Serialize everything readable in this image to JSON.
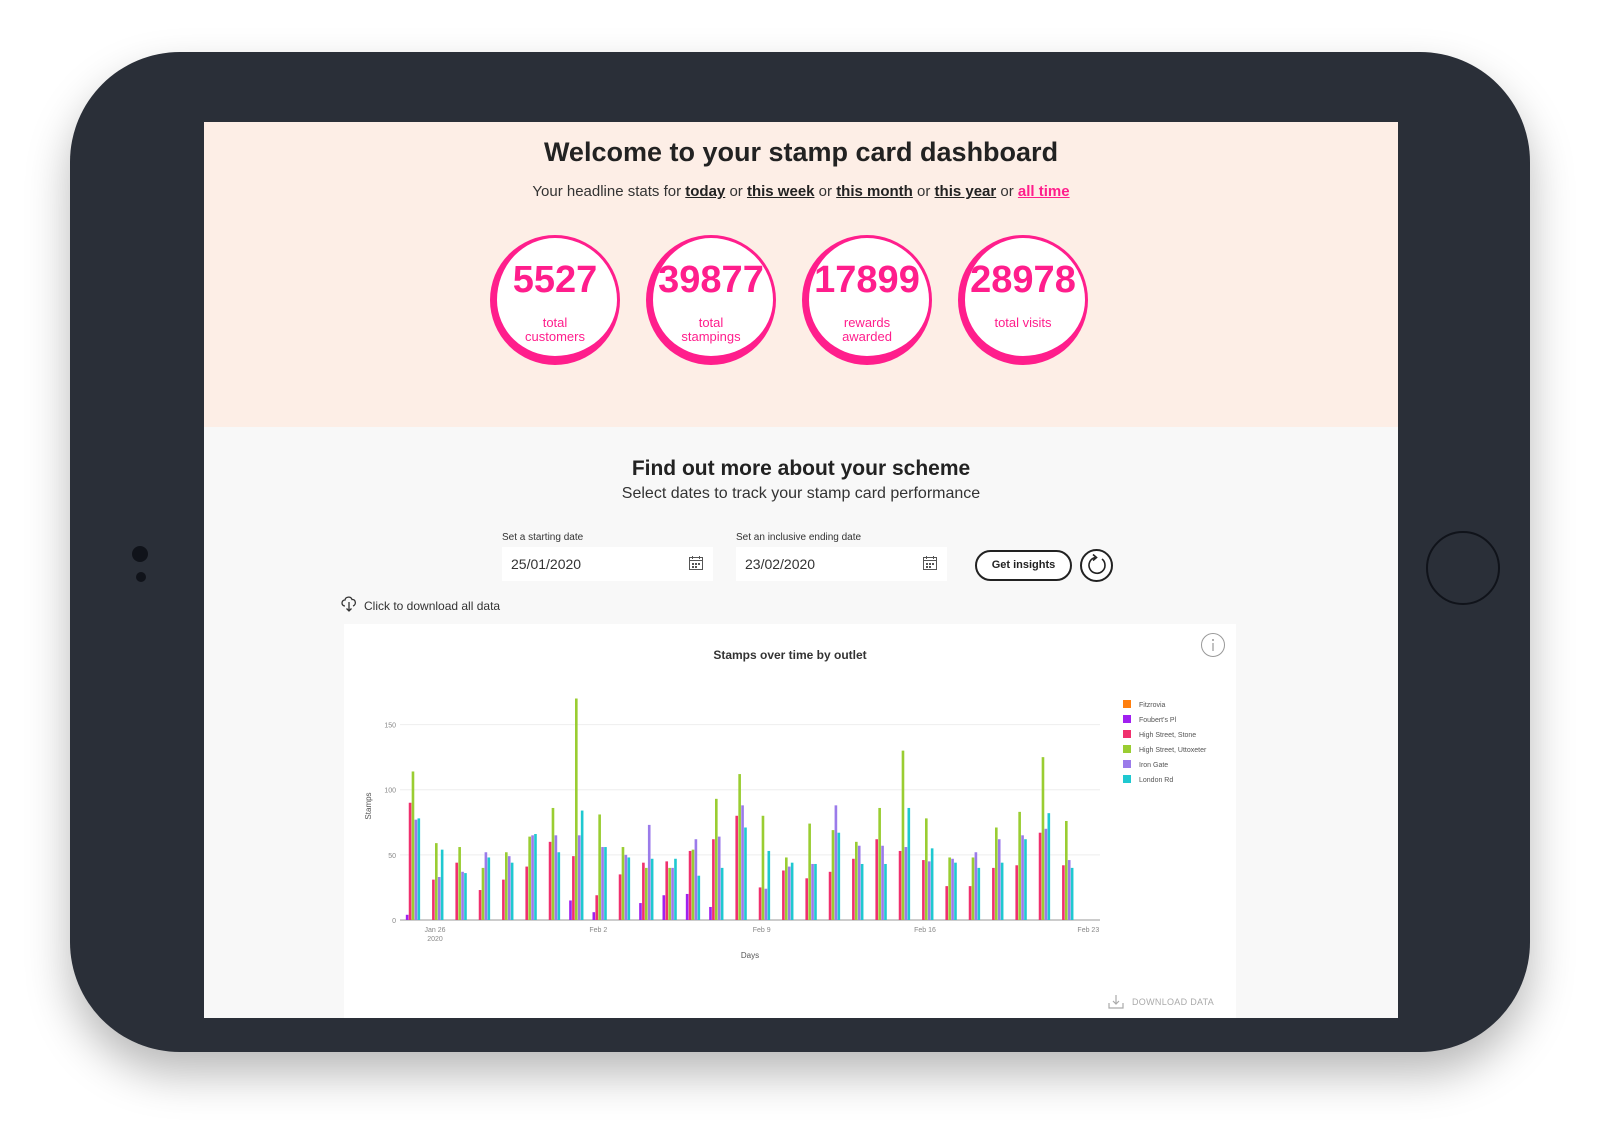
{
  "hero": {
    "title": "Welcome to your stamp card dashboard",
    "sub_prefix": "Your headline stats for",
    "periods": [
      "today",
      "this week",
      "this month",
      "this year",
      "all time"
    ],
    "separator": "or",
    "active_period": "all time",
    "stats": [
      {
        "value": "5527",
        "label": "total customers"
      },
      {
        "value": "39877",
        "label": "total stampings"
      },
      {
        "value": "17899",
        "label": "rewards awarded"
      },
      {
        "value": "28978",
        "label": "total visits"
      }
    ]
  },
  "insights": {
    "title": "Find out more about your scheme",
    "subtitle": "Select dates to track your stamp card performance",
    "start_label": "Set a starting date",
    "start_value": "25/01/2020",
    "end_label": "Set an inclusive ending date",
    "end_value": "23/02/2020",
    "button_label": "Get insights",
    "download_all_label": "Click to download all data",
    "download_data_label": "DOWNLOAD DATA"
  },
  "colors": {
    "accent": "#ff1e8c",
    "hero_bg": "#fdeee6",
    "frame": "#2a2f38"
  },
  "chart_data": {
    "type": "bar",
    "title": "Stamps over time by outlet",
    "xlabel": "Days",
    "ylabel": "Stamps",
    "ylim": [
      0,
      175
    ],
    "yticks": [
      0,
      50,
      100,
      150
    ],
    "xticks": [
      {
        "day": 26,
        "label": "Jan 26",
        "sublabel": "2020"
      },
      {
        "day": 33,
        "label": "Feb 2",
        "sublabel": ""
      },
      {
        "day": 40,
        "label": "Feb 9",
        "sublabel": ""
      },
      {
        "day": 47,
        "label": "Feb 16",
        "sublabel": ""
      },
      {
        "day": 54,
        "label": "Feb 23",
        "sublabel": ""
      }
    ],
    "grid": true,
    "legend_position": "right",
    "start_day": 25,
    "categories": [
      "Jan 25",
      "Jan 26",
      "Jan 27",
      "Jan 28",
      "Jan 29",
      "Jan 30",
      "Jan 31",
      "Feb 1",
      "Feb 2",
      "Feb 3",
      "Feb 4",
      "Feb 5",
      "Feb 6",
      "Feb 7",
      "Feb 8",
      "Feb 9",
      "Feb 10",
      "Feb 11",
      "Feb 12",
      "Feb 13",
      "Feb 14",
      "Feb 15",
      "Feb 16",
      "Feb 17",
      "Feb 18",
      "Feb 19",
      "Feb 20",
      "Feb 21",
      "Feb 22",
      "Feb 23"
    ],
    "series": [
      {
        "name": "Fitzrovia",
        "color": "#ff7f0e",
        "values": [
          0,
          0,
          0,
          0,
          0,
          0,
          0,
          0,
          0,
          0,
          0,
          0,
          0,
          0,
          0,
          0,
          0,
          0,
          0,
          0,
          0,
          0,
          0,
          0,
          0,
          0,
          0,
          0,
          0,
          0
        ]
      },
      {
        "name": "Foubert's Pl",
        "color": "#a020f0",
        "values": [
          4,
          0,
          0,
          0,
          0,
          0,
          0,
          15,
          6,
          0,
          13,
          19,
          20,
          10,
          0,
          0,
          0,
          0,
          0,
          0,
          0,
          0,
          0,
          0,
          0,
          0,
          0,
          0,
          0,
          0
        ]
      },
      {
        "name": "High Street, Stone",
        "color": "#f0306e",
        "values": [
          90,
          31,
          44,
          23,
          31,
          41,
          60,
          49,
          19,
          35,
          44,
          45,
          53,
          62,
          80,
          25,
          38,
          32,
          37,
          47,
          62,
          53,
          46,
          26,
          26,
          40,
          42,
          67,
          42,
          0
        ]
      },
      {
        "name": "High Street, Uttoxeter",
        "color": "#9acd32",
        "values": [
          114,
          59,
          56,
          40,
          52,
          64,
          86,
          170,
          81,
          56,
          40,
          40,
          54,
          93,
          112,
          80,
          48,
          74,
          69,
          60,
          86,
          130,
          78,
          48,
          48,
          71,
          83,
          125,
          76,
          0
        ]
      },
      {
        "name": "Iron Gate",
        "color": "#9b7bea",
        "values": [
          77,
          33,
          37,
          52,
          49,
          65,
          65,
          65,
          56,
          50,
          73,
          40,
          62,
          64,
          88,
          24,
          41,
          43,
          88,
          57,
          57,
          56,
          45,
          47,
          52,
          62,
          65,
          70,
          46,
          0
        ]
      },
      {
        "name": "London Rd",
        "color": "#1fc8d0",
        "values": [
          78,
          54,
          36,
          48,
          44,
          66,
          52,
          84,
          56,
          48,
          47,
          47,
          34,
          40,
          71,
          53,
          44,
          43,
          67,
          43,
          43,
          86,
          55,
          44,
          40,
          44,
          62,
          82,
          40,
          0
        ]
      }
    ]
  }
}
